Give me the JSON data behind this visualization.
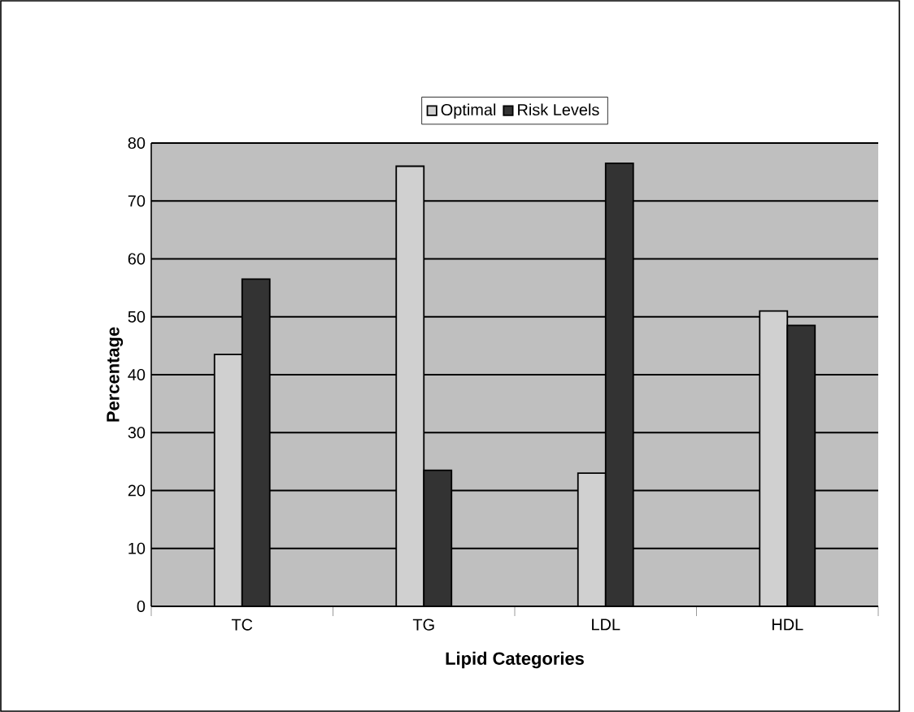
{
  "chart_data": {
    "type": "bar",
    "xlabel": "Lipid Categories",
    "ylabel": "Percentage",
    "categories": [
      "TC",
      "TG",
      "LDL",
      "HDL"
    ],
    "series": [
      {
        "name": "Optimal",
        "color": "#d0d0d0",
        "values": [
          43.5,
          76,
          23,
          51
        ]
      },
      {
        "name": "Risk Levels",
        "color": "#333333",
        "values": [
          56.5,
          23.5,
          76.5,
          48.5
        ]
      }
    ],
    "ylim": [
      0,
      80
    ],
    "yticks": [
      0,
      10,
      20,
      30,
      40,
      50,
      60,
      70,
      80
    ],
    "grid": "y",
    "legend": "top"
  }
}
